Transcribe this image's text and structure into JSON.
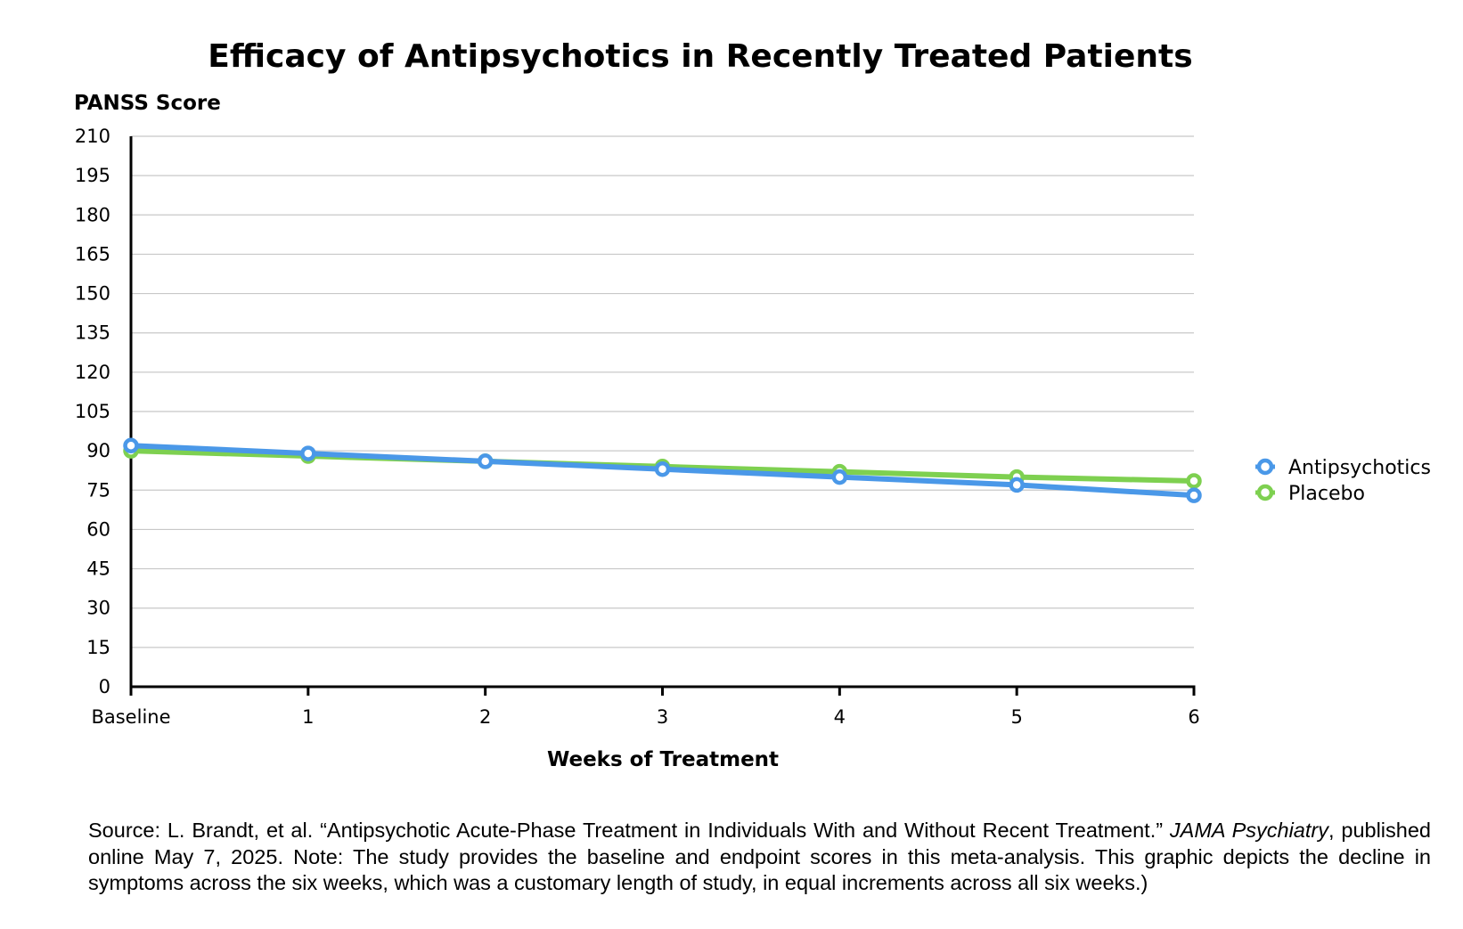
{
  "chart_data": {
    "type": "line",
    "title": "Efficacy of Antipsychotics in Recently Treated Patients",
    "xlabel": "Weeks of Treatment",
    "ylabel": "PANSS Score",
    "categories": [
      "Baseline",
      "1",
      "2",
      "3",
      "4",
      "5",
      "6"
    ],
    "yticks": [
      "0",
      "15",
      "30",
      "45",
      "60",
      "75",
      "90",
      "105",
      "120",
      "135",
      "150",
      "165",
      "180",
      "195",
      "210"
    ],
    "ylim": [
      0,
      210
    ],
    "grid": true,
    "legend_position": "right",
    "series": [
      {
        "name": "Antipsychotics",
        "color": "#4a98e8",
        "values": [
          92,
          89,
          86,
          83,
          80,
          77,
          73
        ]
      },
      {
        "name": "Placebo",
        "color": "#7ed050",
        "values": [
          90,
          88,
          86,
          84,
          82,
          80,
          78.5
        ]
      }
    ]
  },
  "source": {
    "prefix": "Source:  L. Brandt, et al. “Antipsychotic Acute-Phase Treatment in Individuals With and Without Recent Treatment.” ",
    "journal": "JAMA Psychiatry",
    "suffix": ", published online May 7, 2025. Note: The study provides the baseline and endpoint scores in this meta-analysis. This graphic depicts the decline in symptoms across the six weeks, which was a customary length of study, in equal increments across all six weeks.)"
  }
}
